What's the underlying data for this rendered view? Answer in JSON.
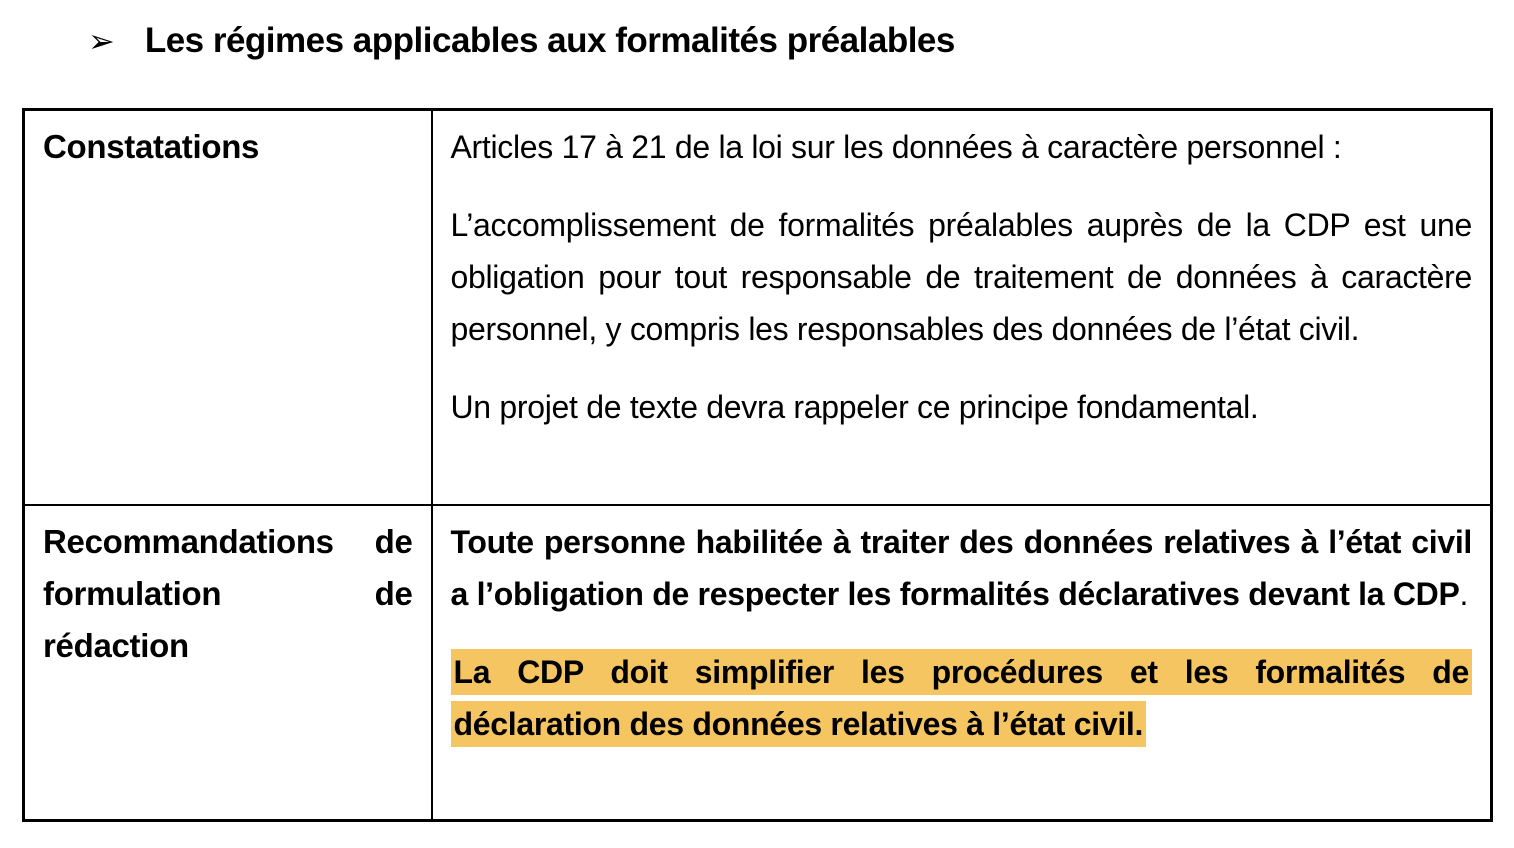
{
  "theme": {
    "highlight": "#F5C561",
    "border": "#000000",
    "text": "#000000",
    "page_background": "#FFFFFF"
  },
  "heading": {
    "bullet": "➢",
    "text": "Les régimes applicables aux formalités préalables"
  },
  "table": {
    "rows": [
      {
        "label": "Constatations",
        "paragraphs": [
          {
            "text": "Articles 17 à 21 de la loi sur les données à caractère personnel :",
            "bold": false,
            "highlight": false
          },
          {
            "text": "L’accomplissement de formalités préalables auprès de la CDP est une obligation pour tout responsable de traitement de données à caractère personnel, y compris les responsables des données de l’état civil.",
            "bold": false,
            "highlight": false
          },
          {
            "text": "Un projet de texte devra rappeler ce principe fondamental.",
            "bold": false,
            "highlight": false
          }
        ]
      },
      {
        "label": "Recommandations de formulation de rédaction",
        "paragraphs": [
          {
            "text": "Toute personne habilitée à traiter des données relatives à l’état civil a l’obligation de respecter les formalités déclaratives devant la CDP",
            "plain_suffix": ".",
            "bold": true,
            "highlight": false
          },
          {
            "text": "La CDP doit simplifier les procédures et les formalités de déclaration des données relatives à l’état civil.",
            "bold": true,
            "highlight": true
          }
        ]
      }
    ]
  }
}
